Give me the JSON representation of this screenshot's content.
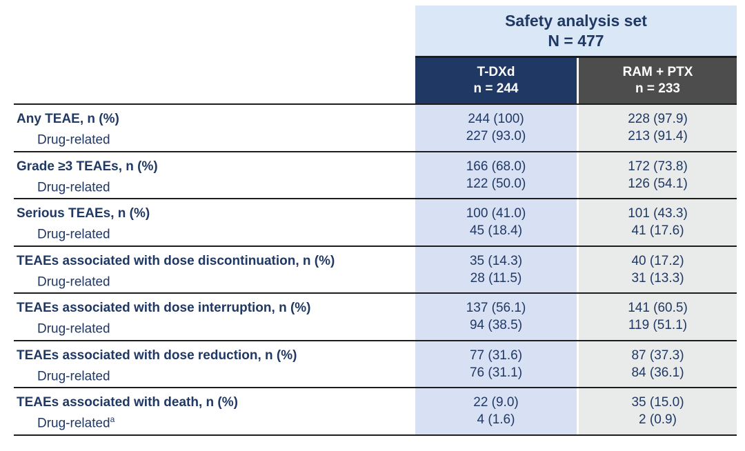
{
  "header": {
    "set_title": "Safety analysis set",
    "set_n": "N = 477",
    "columns": [
      {
        "label": "T-DXd",
        "n": "n = 244"
      },
      {
        "label": "RAM + PTX",
        "n": "n = 233"
      }
    ]
  },
  "rows": [
    {
      "label": "Any TEAE, n (%)",
      "sub": "Drug-related",
      "sup": "",
      "v1": "244 (100)",
      "v2": "228 (97.9)",
      "s1": "227 (93.0)",
      "s2": "213 (91.4)"
    },
    {
      "label": "Grade ≥3 TEAEs, n (%)",
      "sub": "Drug-related",
      "sup": "",
      "v1": "166 (68.0)",
      "v2": "172 (73.8)",
      "s1": "122 (50.0)",
      "s2": "126 (54.1)"
    },
    {
      "label": "Serious TEAEs, n (%)",
      "sub": "Drug-related",
      "sup": "",
      "v1": "100 (41.0)",
      "v2": "101 (43.3)",
      "s1": "45 (18.4)",
      "s2": "41 (17.6)"
    },
    {
      "label": "TEAEs associated with dose discontinuation, n (%)",
      "sub": "Drug-related",
      "sup": "",
      "v1": "35 (14.3)",
      "v2": "40 (17.2)",
      "s1": "28 (11.5)",
      "s2": "31 (13.3)"
    },
    {
      "label": "TEAEs associated with dose interruption, n (%)",
      "sub": "Drug-related",
      "sup": "",
      "v1": "137 (56.1)",
      "v2": "141 (60.5)",
      "s1": "94 (38.5)",
      "s2": "119 (51.1)"
    },
    {
      "label": "TEAEs associated with dose reduction, n (%)",
      "sub": "Drug-related",
      "sup": "",
      "v1": "77 (31.6)",
      "v2": "87 (37.3)",
      "s1": "76 (31.1)",
      "s2": "84 (36.1)"
    },
    {
      "label": "TEAEs associated with death, n (%)",
      "sub": "Drug-related",
      "sup": "a",
      "v1": "22 (9.0)",
      "v2": "35 (15.0)",
      "s1": "4 (1.6)",
      "s2": "2 (0.9)"
    }
  ],
  "colors": {
    "band_bg": "#dae7f6",
    "tdxd_header_bg": "#1f3864",
    "ram_header_bg": "#4d4d4d",
    "tdxd_col_bg": "#d8e0f3",
    "ram_col_bg": "#e9eaea",
    "text_navy": "#1f3864",
    "header_text": "#ffffff",
    "rule": "#1c1c1c"
  }
}
